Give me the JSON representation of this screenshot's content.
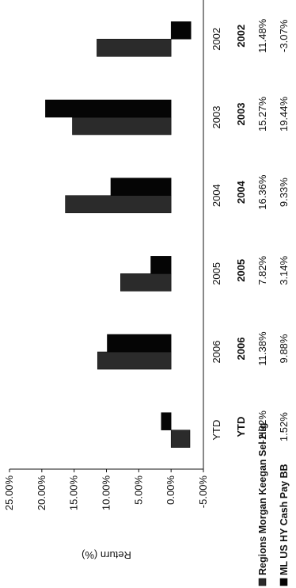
{
  "chart_data": {
    "type": "bar",
    "categories": [
      "YTD",
      "2006",
      "2005",
      "2004",
      "2003",
      "2002"
    ],
    "series": [
      {
        "name": "Regions Morgan Keegan Sel Hig",
        "values": [
          -2.92,
          11.38,
          7.82,
          16.36,
          15.27,
          11.48
        ],
        "display": [
          "-2.92%",
          "11.38%",
          "7.82%",
          "16.36%",
          "15.27%",
          "11.48%"
        ],
        "color": "#2b2b2b"
      },
      {
        "name": "ML US HY Cash Pay BB",
        "values": [
          1.52,
          9.88,
          3.14,
          9.33,
          19.44,
          -3.07
        ],
        "display": [
          "1.52%",
          "9.88%",
          "3.14%",
          "9.33%",
          "19.44%",
          "-3.07%"
        ],
        "color": "#050505"
      }
    ],
    "ylabel": "Return (%)",
    "ylim": [
      -5,
      25
    ],
    "yticks": [
      "-5.00%",
      "0.00%",
      "5.00%",
      "10.00%",
      "15.00%",
      "20.00%",
      "25.00%"
    ],
    "grid": false,
    "legend": "bottom-left"
  }
}
